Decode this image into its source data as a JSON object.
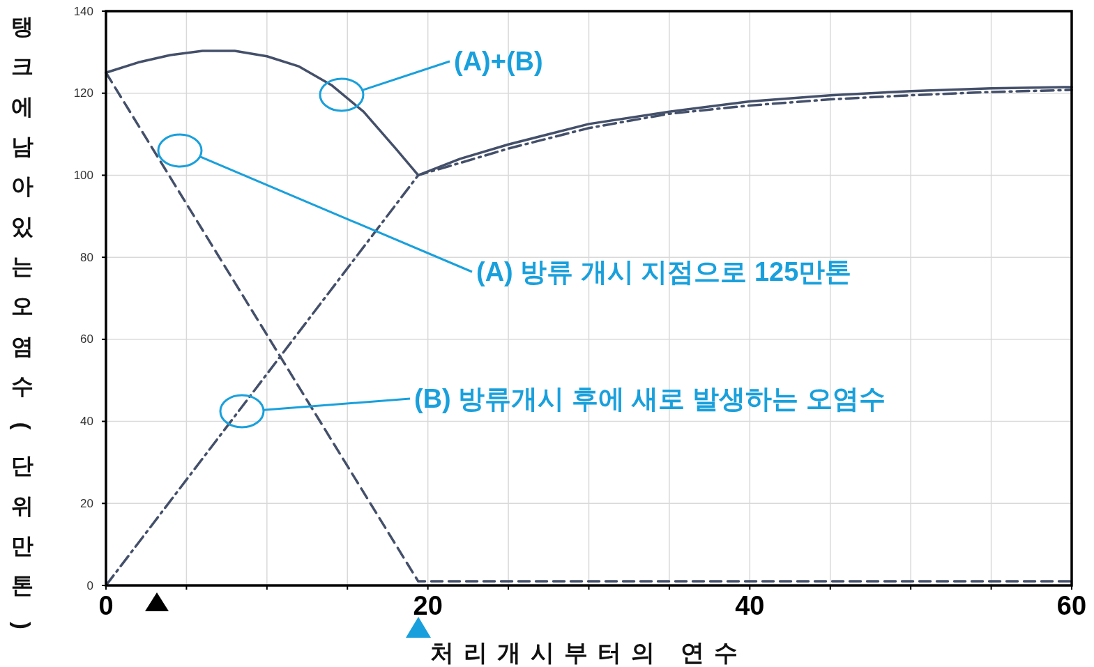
{
  "chart_data": {
    "type": "line",
    "xlabel": "처리개시부터의 연수",
    "ylabel": "탱크에남아있는오염수(단위만톤)",
    "xlim": [
      0,
      60
    ],
    "xticks": [
      0,
      {
        "value": 5,
        "label": null
      },
      {
        "value": 10,
        "label": null
      },
      {
        "value": 15,
        "label": null
      },
      20,
      {
        "value": 25,
        "label": null
      },
      {
        "value": 30,
        "label": null
      },
      {
        "value": 35,
        "label": null
      },
      40,
      {
        "value": 45,
        "label": null
      },
      {
        "value": 50,
        "label": null
      },
      {
        "value": 55,
        "label": null
      },
      60
    ],
    "ylim": [
      0,
      140
    ],
    "yticks": [
      0,
      20,
      40,
      60,
      80,
      100,
      120,
      140
    ],
    "grid": true,
    "series": [
      {
        "color": "#44506a",
        "line_style": "solid",
        "x": [
          0,
          2,
          4,
          6,
          8,
          10,
          12,
          14,
          16,
          18,
          19.4,
          22,
          25,
          30,
          35,
          40,
          45,
          50,
          55,
          60
        ],
        "values": [
          125,
          127.5,
          129.3,
          130.3,
          130.3,
          129,
          126.5,
          122,
          115.5,
          106.5,
          100,
          104,
          107.5,
          112.5,
          115.5,
          118,
          119.5,
          120.5,
          121.2,
          121.5
        ]
      },
      {
        "color": "#44506a",
        "line_style": "dashed",
        "x": [
          0,
          19.4,
          60
        ],
        "values": [
          125,
          1,
          1
        ]
      },
      {
        "color": "#44506a",
        "line_style": "dashdot",
        "x": [
          0,
          19.4,
          22,
          25,
          30,
          35,
          40,
          45,
          50,
          55,
          60
        ],
        "values": [
          0,
          100,
          103,
          106.5,
          111.5,
          115,
          117,
          118.5,
          119.5,
          120.3,
          120.8
        ]
      }
    ],
    "annotations": [
      "(A)+(B)",
      "(A) 방류 개시 지점으로 125만톤",
      "(B) 방류개시 후에 새로 발생하는 오염수"
    ]
  }
}
